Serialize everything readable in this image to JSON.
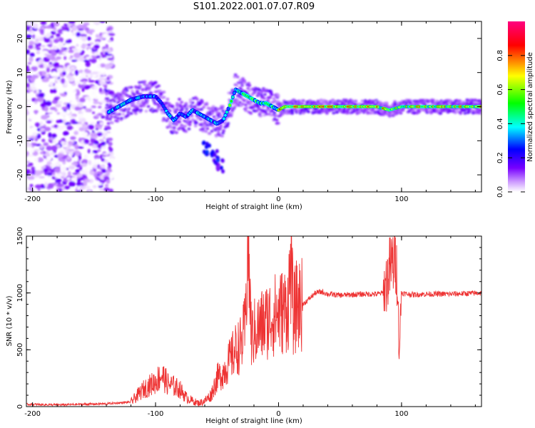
{
  "page": {
    "title": "S101.2022.001.07.07.R09"
  },
  "colors": {
    "snr_line": "#ee3333",
    "colormap": [
      "#ffffff",
      "#cc99ff",
      "#7700ff",
      "#0000ff",
      "#00ffff",
      "#00ff00",
      "#ffff00",
      "#ff0000",
      "#ff0080"
    ]
  },
  "chart_data": [
    {
      "type": "heatmap",
      "title": "",
      "xlabel": "Height of straight line (km)",
      "ylabel": "Frequency (Hz)",
      "xlim": [
        -205,
        165
      ],
      "ylim": [
        -25,
        25
      ],
      "xticks": [
        -200,
        -100,
        0,
        100
      ],
      "yticks": [
        -20,
        -10,
        0,
        10,
        20
      ],
      "colorbar": {
        "label": "Normalized spectral amplitude",
        "range": [
          0.0,
          1.0
        ],
        "ticks": [
          0.0,
          0.2,
          0.4,
          0.6,
          0.8
        ]
      },
      "ridge": {
        "description_units": "frequency (Hz) vs height (km)",
        "x": [
          -140,
          -130,
          -120,
          -110,
          -100,
          -95,
          -90,
          -85,
          -80,
          -75,
          -70,
          -65,
          -60,
          -55,
          -50,
          -45,
          -40,
          -35,
          -30,
          -25,
          -20,
          -15,
          -10,
          -5,
          0,
          5,
          10,
          20,
          40,
          60,
          80,
          90,
          100,
          120,
          140,
          160
        ],
        "y": [
          -2,
          0,
          2,
          3,
          3,
          1,
          -2,
          -4,
          -2,
          -3,
          -1,
          -2,
          -3,
          -4,
          -5,
          -4,
          0,
          5,
          4,
          3,
          2,
          1,
          1,
          0,
          -1,
          0,
          0,
          0,
          0,
          0,
          0,
          -1,
          0,
          0,
          0,
          0
        ]
      },
      "noise_region": {
        "x_range": [
          -205,
          -135
        ],
        "y_range": [
          -25,
          25
        ]
      },
      "secondary_feature": {
        "x": [
          -58,
          -52,
          -48
        ],
        "y": [
          -12,
          -15,
          -17
        ]
      },
      "grid": false
    },
    {
      "type": "line",
      "title": "",
      "xlabel": "Height of straight line (km)",
      "ylabel": "SNR (10 * v/v)",
      "xlim": [
        -205,
        165
      ],
      "ylim": [
        0,
        1500
      ],
      "xticks": [
        -200,
        -100,
        0,
        100
      ],
      "yticks": [
        0,
        500,
        1000,
        1500
      ],
      "series": [
        {
          "name": "",
          "x": [
            -205,
            -180,
            -160,
            -140,
            -120,
            -110,
            -100,
            -95,
            -90,
            -85,
            -80,
            -75,
            -70,
            -65,
            -60,
            -55,
            -50,
            -45,
            -40,
            -35,
            -30,
            -27,
            -25,
            -22,
            -20,
            -15,
            -10,
            -5,
            0,
            5,
            8,
            10,
            12,
            15,
            20,
            25,
            30,
            35,
            40,
            50,
            60,
            70,
            80,
            85,
            88,
            90,
            92,
            95,
            97,
            98,
            100,
            105,
            110,
            120,
            140,
            165
          ],
          "y": [
            20,
            15,
            20,
            25,
            40,
            150,
            220,
            280,
            200,
            180,
            150,
            80,
            50,
            30,
            50,
            100,
            250,
            300,
            400,
            500,
            550,
            700,
            1500,
            600,
            650,
            700,
            750,
            800,
            820,
            850,
            900,
            1300,
            800,
            900,
            900,
            950,
            1000,
            1010,
            990,
            980,
            985,
            990,
            990,
            1000,
            1100,
            1200,
            1250,
            1300,
            1100,
            450,
            1000,
            990,
            985,
            990,
            990,
            1000
          ]
        }
      ],
      "grid": false
    }
  ]
}
